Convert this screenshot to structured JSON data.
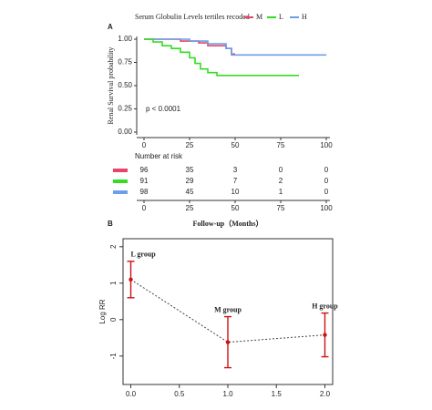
{
  "chart_data": [
    {
      "type": "line",
      "panel": "A",
      "title": "Serum Globulin Levels tertiles recoded",
      "ylabel": "Renal Survival probability",
      "annotation": "p < 0.0001",
      "xlim": [
        0,
        100
      ],
      "xticks": [
        0,
        25,
        50,
        75,
        100
      ],
      "ylim": [
        0,
        1
      ],
      "yticks": [
        {
          "value": 0,
          "label": "0.00"
        },
        0.25,
        {
          "value": 0.5,
          "label": "0.50"
        },
        0.75,
        {
          "value": 1,
          "label": "1.00"
        }
      ],
      "series": [
        {
          "name": "M",
          "color": "#e8436b",
          "x": [
            0,
            20,
            20,
            30,
            30,
            35,
            35,
            45,
            45,
            48,
            48,
            50
          ],
          "values": [
            1,
            1,
            0.98,
            0.98,
            0.96,
            0.96,
            0.93,
            0.93,
            0.9,
            0.9,
            0.84,
            0.84
          ]
        },
        {
          "name": "L",
          "color": "#33dd22",
          "x": [
            0,
            5,
            5,
            10,
            10,
            15,
            15,
            20,
            20,
            25,
            25,
            28,
            28,
            31,
            31,
            35,
            35,
            40,
            40,
            85
          ],
          "values": [
            1,
            1,
            0.97,
            0.97,
            0.93,
            0.93,
            0.9,
            0.9,
            0.86,
            0.86,
            0.8,
            0.8,
            0.74,
            0.74,
            0.68,
            0.68,
            0.64,
            0.64,
            0.61,
            0.61
          ]
        },
        {
          "name": "H",
          "color": "#6aa0e8",
          "x": [
            0,
            25,
            25,
            35,
            35,
            45,
            45,
            48,
            48,
            100
          ],
          "values": [
            1,
            1,
            0.98,
            0.98,
            0.95,
            0.95,
            0.9,
            0.9,
            0.83,
            0.83
          ]
        }
      ]
    },
    {
      "type": "table",
      "title": "Number at risk",
      "xlabel": "Follow-up（Months）",
      "xlim": [
        0,
        100
      ],
      "xticks": [
        0,
        25,
        50,
        75,
        100
      ],
      "rows": [
        {
          "color": "#e8436b",
          "values": [
            96,
            35,
            3,
            0,
            0
          ]
        },
        {
          "color": "#33dd22",
          "values": [
            91,
            29,
            7,
            2,
            0
          ]
        },
        {
          "color": "#6aa0e8",
          "values": [
            98,
            45,
            10,
            1,
            0
          ]
        }
      ]
    },
    {
      "type": "errorbar",
      "panel": "B",
      "ylabel": "Log RR",
      "color": "#cc1111",
      "categories": [
        "L group",
        "M group",
        "H group"
      ],
      "x": [
        0,
        1,
        2
      ],
      "values": [
        1.1,
        -0.62,
        -0.42
      ],
      "lower": [
        0.6,
        -1.32,
        -1.02
      ],
      "upper": [
        1.6,
        0.08,
        0.18
      ],
      "xlim": [
        -0.08,
        2.08
      ],
      "xticks": [
        {
          "value": 0,
          "label": "0.0"
        },
        0.5,
        {
          "value": 1,
          "label": "1.0"
        },
        1.5,
        {
          "value": 2,
          "label": "2.0"
        }
      ],
      "ylim": [
        -1.78,
        2.22
      ],
      "yticks": [
        -1,
        0,
        1,
        2
      ]
    }
  ]
}
